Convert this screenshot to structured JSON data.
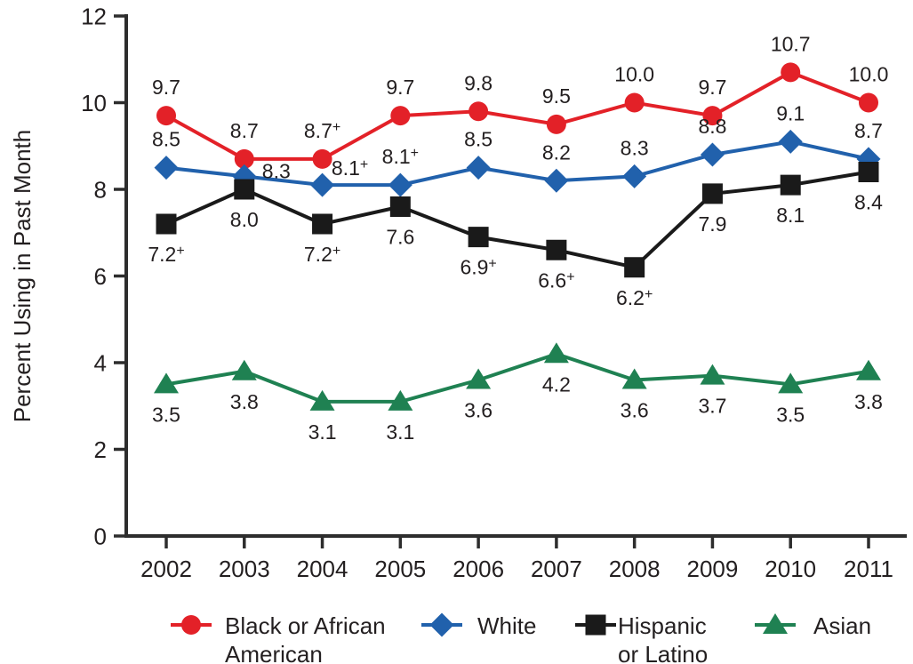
{
  "page": {
    "background": "#ffffff"
  },
  "chart_data": {
    "type": "line",
    "title": "",
    "xlabel": "",
    "ylabel": "Percent Using in Past Month",
    "ylim": [
      0,
      12
    ],
    "yticks": [
      "0",
      "2",
      "4",
      "6",
      "8",
      "10",
      "12"
    ],
    "categories": [
      "2002",
      "2003",
      "2004",
      "2005",
      "2006",
      "2007",
      "2008",
      "2009",
      "2010",
      "2011"
    ],
    "grid": false,
    "legend_position": "bottom",
    "superscript_marker": "+",
    "text_color": "#231f20",
    "axis_color": "#2d2d2d",
    "series": [
      {
        "name": "Black or African American",
        "legend_label_lines": [
          "Black or African",
          "American"
        ],
        "color": "#e32128",
        "marker": "circle",
        "values": [
          9.7,
          8.7,
          8.7,
          9.7,
          9.8,
          9.5,
          10.0,
          9.7,
          10.7,
          10.0
        ],
        "point_labels": [
          "9.7",
          "8.7",
          "8.7+",
          "9.7",
          "9.8",
          "9.5",
          "10.0",
          "9.7",
          "10.7",
          "10.0"
        ],
        "label_positions": [
          "above",
          "above",
          "above",
          "above",
          "above",
          "above",
          "above",
          "above",
          "above",
          "above"
        ]
      },
      {
        "name": "White",
        "legend_label_lines": [
          "White"
        ],
        "color": "#2161ac",
        "marker": "diamond",
        "values": [
          8.5,
          8.3,
          8.1,
          8.1,
          8.5,
          8.2,
          8.3,
          8.8,
          9.1,
          8.7
        ],
        "point_labels": [
          "8.5",
          "8.3",
          "8.1+",
          "8.1+",
          "8.5",
          "8.2",
          "8.3",
          "8.8",
          "9.1",
          "8.7"
        ],
        "label_positions": [
          "above",
          "right",
          "right-above",
          "above",
          "above",
          "above",
          "above",
          "above",
          "above",
          "above"
        ]
      },
      {
        "name": "Hispanic or Latino",
        "legend_label_lines": [
          "Hispanic",
          "or Latino"
        ],
        "color": "#1a1a1a",
        "marker": "square",
        "values": [
          7.2,
          8.0,
          7.2,
          7.6,
          6.9,
          6.6,
          6.2,
          7.9,
          8.1,
          8.4
        ],
        "point_labels": [
          "7.2+",
          "8.0",
          "7.2+",
          "7.6",
          "6.9+",
          "6.6+",
          "6.2+",
          "7.9",
          "8.1",
          "8.4"
        ],
        "label_positions": [
          "below",
          "below",
          "below",
          "below",
          "below",
          "below",
          "below",
          "below",
          "below",
          "below"
        ]
      },
      {
        "name": "Asian",
        "legend_label_lines": [
          "Asian"
        ],
        "color": "#1f8152",
        "marker": "triangle",
        "values": [
          3.5,
          3.8,
          3.1,
          3.1,
          3.6,
          4.2,
          3.6,
          3.7,
          3.5,
          3.8
        ],
        "point_labels": [
          "3.5",
          "3.8",
          "3.1",
          "3.1",
          "3.6",
          "4.2",
          "3.6",
          "3.7",
          "3.5",
          "3.8"
        ],
        "label_positions": [
          "below",
          "below",
          "below",
          "below",
          "below",
          "below",
          "below",
          "below",
          "below",
          "below"
        ]
      }
    ]
  }
}
